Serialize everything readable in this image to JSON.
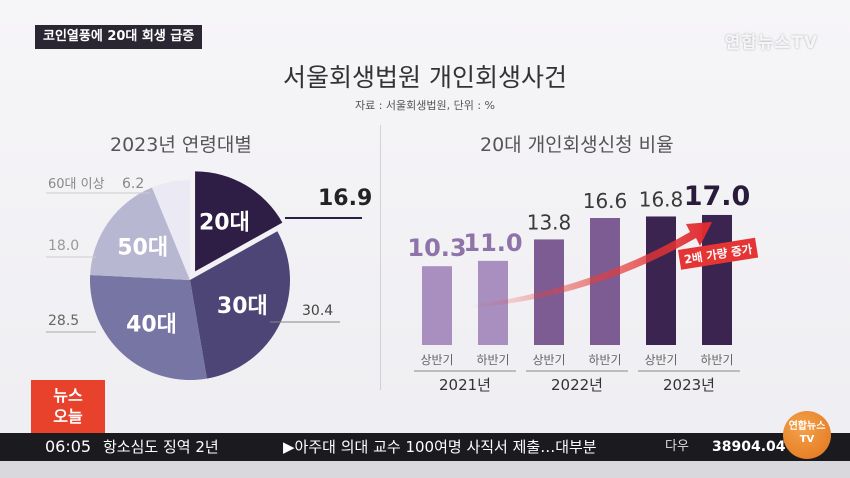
{
  "header": {
    "tag": "코인열풍에 20대 회생 급증",
    "logo": "연합뉴스TV",
    "title": "서울회생법원 개인회생사건",
    "source": "자료 : 서울회생법원, 단위 : %"
  },
  "chart_data": [
    {
      "type": "pie",
      "title": "2023년 연령대별",
      "slices": [
        {
          "label": "20대",
          "value": 16.9,
          "color": "#2e1d44",
          "value_label": "16.9"
        },
        {
          "label": "30대",
          "value": 30.4,
          "color": "#4c4576",
          "value_label": "30.4"
        },
        {
          "label": "40대",
          "value": 28.5,
          "color": "#7775a3",
          "value_label": "28.5"
        },
        {
          "label": "50대",
          "value": 18.0,
          "color": "#b8b7d2",
          "value_label": "18.0"
        },
        {
          "label": "60대 이상",
          "value": 6.2,
          "color": "#ebe9f3",
          "value_label": "6.2"
        }
      ]
    },
    {
      "type": "bar",
      "title": "20대 개인회생신청 비율",
      "categories": [
        "상반기",
        "하반기",
        "상반기",
        "하반기",
        "상반기",
        "하반기"
      ],
      "groups": [
        "2021년",
        "2022년",
        "2023년"
      ],
      "values": [
        10.3,
        11.0,
        13.8,
        16.6,
        16.8,
        17.0
      ],
      "value_labels": [
        "10.3",
        "11.0",
        "13.8",
        "16.6",
        "16.8",
        "17.0"
      ],
      "colors": [
        "#a98fbf",
        "#a98fbf",
        "#7d5b93",
        "#7d5b93",
        "#3c2450",
        "#3c2450"
      ],
      "annotation": "2배 가량 증가"
    }
  ],
  "ticker": {
    "badge_line1": "뉴스",
    "badge_line2": "오늘",
    "time": "06:05",
    "text1": "항소심도 징역 2년",
    "text2": "▶아주대 의대 교수 100여명 사직서 제출…대부분",
    "index_name": "다우",
    "index_value": "38904.04",
    "logo_line1": "연합뉴스",
    "logo_line2": "TV"
  }
}
